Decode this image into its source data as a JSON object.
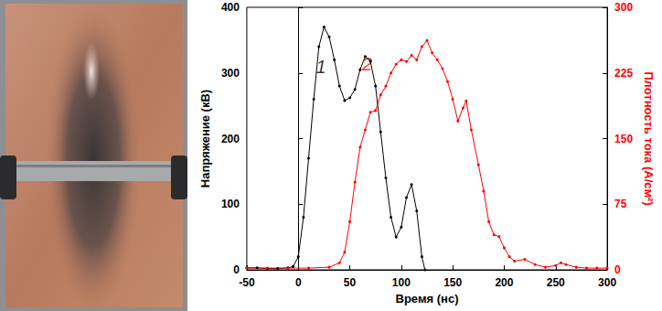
{
  "chart_data": {
    "type": "line",
    "xlabel": "Время (нс)",
    "ylabel": "Напряжение (кВ)",
    "y2label": "Плотность тока (A/см²)",
    "xlim": [
      -50,
      300
    ],
    "xticks": [
      -50,
      0,
      50,
      100,
      150,
      200,
      250,
      300
    ],
    "ylim": [
      0,
      400
    ],
    "yticks": [
      0,
      100,
      200,
      300,
      400
    ],
    "y2lim": [
      0,
      300
    ],
    "y2ticks": [
      0,
      75,
      150,
      225,
      300
    ],
    "grid": false,
    "marker": "circle",
    "series": [
      {
        "color": "#000000",
        "axis": "y",
        "x": [
          -50,
          -40,
          -30,
          -20,
          -10,
          -5,
          0,
          5,
          10,
          15,
          20,
          25,
          30,
          35,
          40,
          45,
          50,
          55,
          60,
          65,
          70,
          75,
          80,
          85,
          90,
          95,
          100,
          105,
          110,
          115,
          120,
          123
        ],
        "values": [
          3,
          3,
          2,
          2,
          3,
          5,
          20,
          80,
          170,
          260,
          340,
          370,
          355,
          320,
          280,
          258,
          262,
          275,
          305,
          325,
          318,
          280,
          210,
          140,
          80,
          50,
          65,
          110,
          130,
          90,
          20,
          0
        ]
      },
      {
        "color": "#ff0000",
        "axis": "y2",
        "x": [
          -50,
          -30,
          -10,
          10,
          30,
          40,
          45,
          50,
          55,
          60,
          65,
          70,
          75,
          80,
          85,
          90,
          95,
          100,
          105,
          110,
          115,
          120,
          125,
          130,
          135,
          140,
          145,
          150,
          155,
          160,
          163,
          168,
          175,
          180,
          185,
          190,
          195,
          200,
          205,
          210,
          220,
          230,
          240,
          250,
          255,
          260,
          270,
          280,
          290,
          300
        ],
        "values": [
          2,
          2,
          2,
          2,
          3,
          8,
          20,
          55,
          100,
          140,
          160,
          180,
          182,
          200,
          210,
          225,
          235,
          240,
          238,
          245,
          240,
          255,
          262,
          248,
          240,
          230,
          215,
          195,
          170,
          185,
          193,
          160,
          120,
          90,
          55,
          40,
          38,
          25,
          15,
          10,
          12,
          6,
          3,
          5,
          8,
          6,
          3,
          2,
          2,
          2
        ]
      }
    ],
    "annotations": [
      {
        "text": "1",
        "x": 22,
        "y": 310,
        "axis": "y",
        "color": "#000000"
      },
      {
        "text": "2",
        "x": 67,
        "y": 235,
        "axis": "y2",
        "color": "#ff0000"
      }
    ]
  }
}
